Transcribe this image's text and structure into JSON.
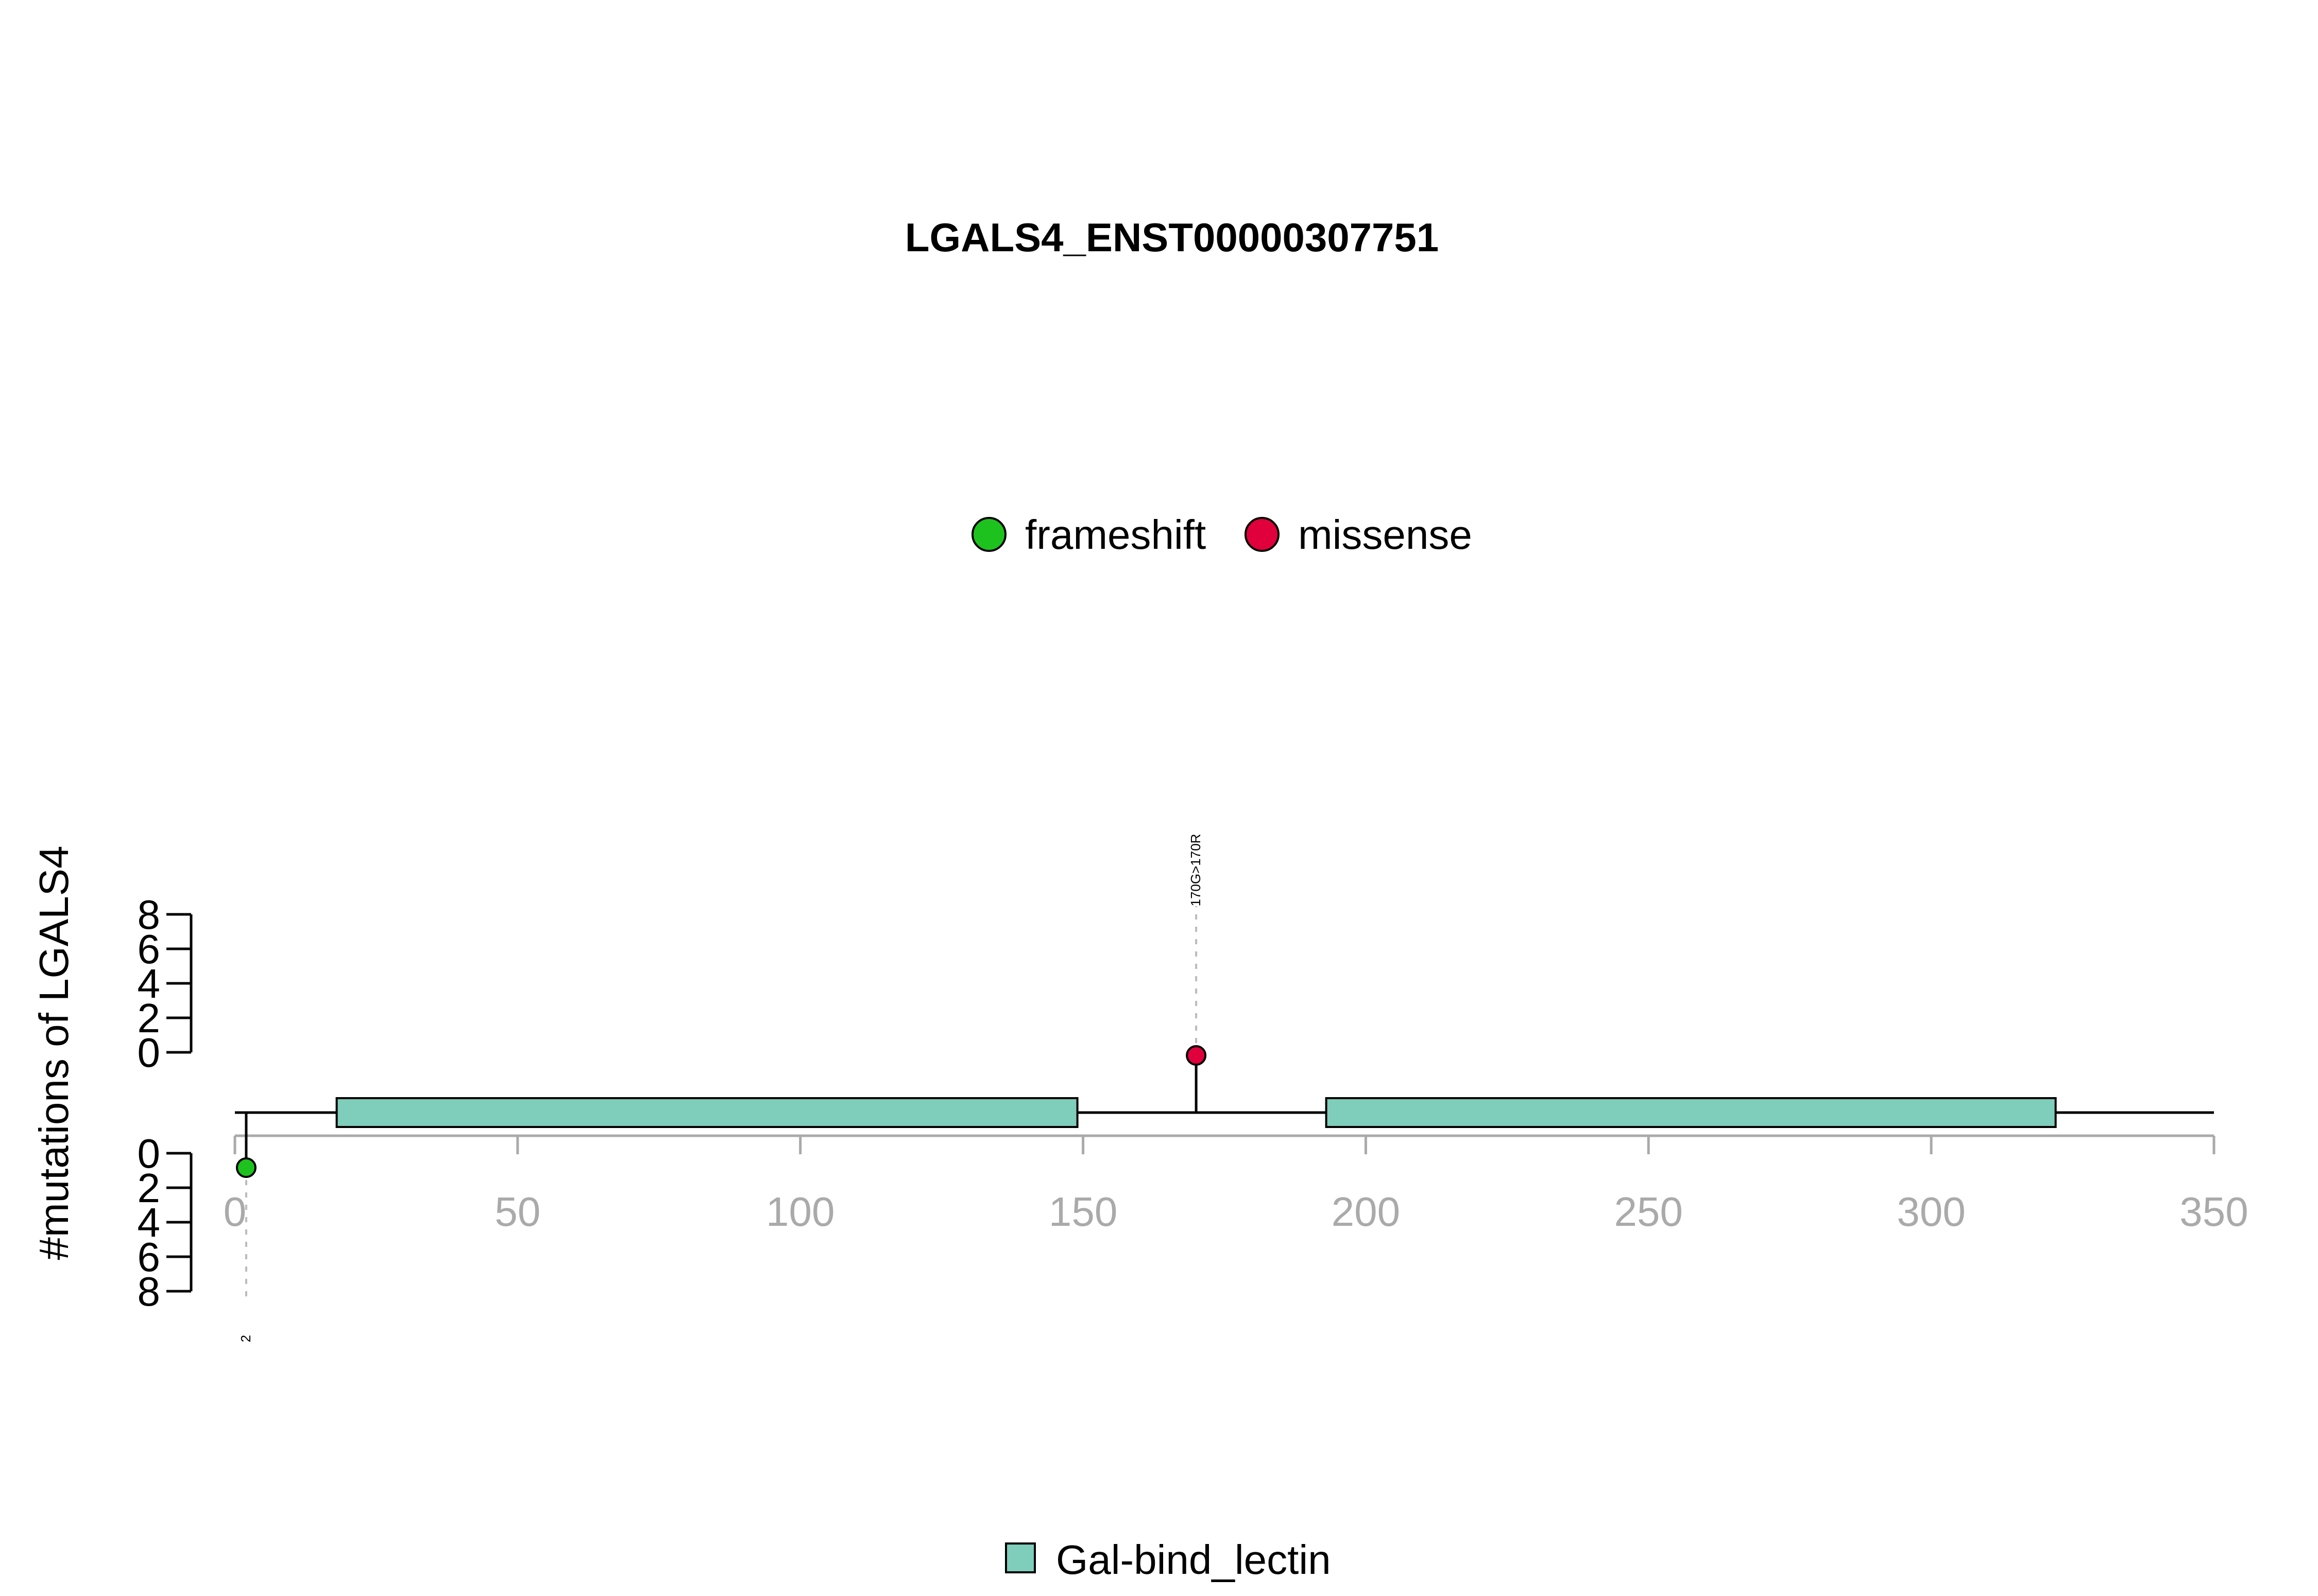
{
  "chart_data": {
    "type": "lollipop",
    "title": "LGALS4_ENST00000307751",
    "ylabel": "#mutations of LGALS4",
    "xlim": [
      0,
      350
    ],
    "x_ticks": [
      0,
      50,
      100,
      150,
      200,
      250,
      300,
      350
    ],
    "y_ticks": [
      0,
      2,
      4,
      6,
      8
    ],
    "protein_length": 350,
    "legend_top": [
      {
        "label": "frameshift",
        "color": "#1ec21e"
      },
      {
        "label": "missense",
        "color": "#e0003c"
      }
    ],
    "legend_bottom": [
      {
        "label": "Gal-bind_lectin",
        "color": "#7fcdbb"
      }
    ],
    "domains": [
      {
        "name": "Gal-bind_lectin",
        "start": 18,
        "end": 149
      },
      {
        "name": "Gal-bind_lectin",
        "start": 193,
        "end": 322
      }
    ],
    "mutations": [
      {
        "position": 170,
        "count": 1,
        "type": "missense",
        "side": "top",
        "label": "170G>170R"
      },
      {
        "position": 2,
        "count": 1,
        "type": "frameshift",
        "side": "bottom",
        "label": "2"
      }
    ]
  }
}
